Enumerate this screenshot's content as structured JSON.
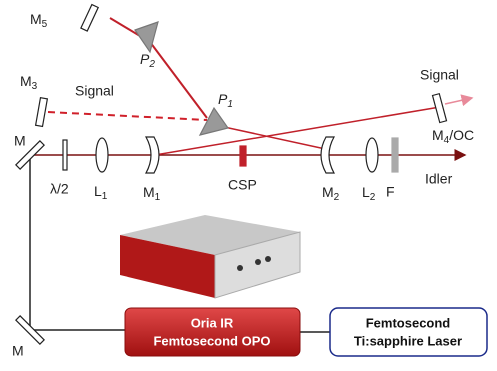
{
  "labels": {
    "m5": {
      "label": "M",
      "sub": "5"
    },
    "p2": {
      "label": "P",
      "sub": "2"
    },
    "m3": {
      "label": "M",
      "sub": "3"
    },
    "signal_left": "Signal",
    "p1": {
      "label": "P",
      "sub": "1"
    },
    "signal_right": "Signal",
    "m4": {
      "label": "M",
      "sub": "4",
      "suffix": "/OC"
    },
    "m_top": "M",
    "half_wave": "λ/2",
    "l1": {
      "label": "L",
      "sub": "1"
    },
    "m1": {
      "label": "M",
      "sub": "1"
    },
    "csp": "CSP",
    "m2": {
      "label": "M",
      "sub": "2"
    },
    "l2": {
      "label": "L",
      "sub": "2"
    },
    "f": "F",
    "idler": "Idler",
    "m_bottom": "M"
  },
  "boxes": {
    "opo": {
      "line1": "Oria IR",
      "line2": "Femtosecond OPO"
    },
    "ti": {
      "line1": "Femtosecond",
      "line2": "Ti:sapphire Laser"
    }
  }
}
